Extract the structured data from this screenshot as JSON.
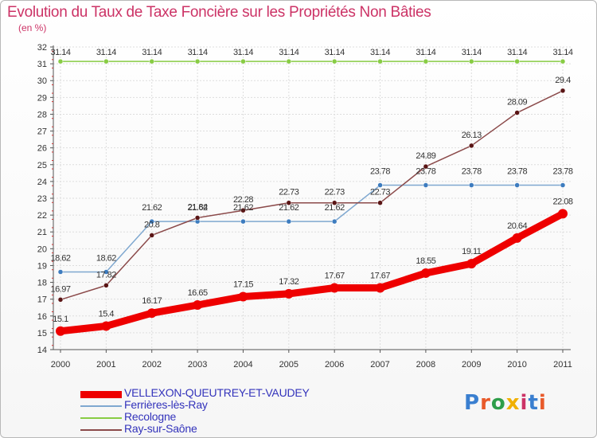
{
  "title": "Evolution du Taux de Taxe Foncière sur les Propriétés Non Bâties",
  "unit_label": "(en %)",
  "logo_text": "Proxiti",
  "chart_data": {
    "type": "line",
    "title": "Evolution du Taux de Taxe Foncière sur les Propriétés Non Bâties",
    "ylabel": "(en %)",
    "xlabel": "",
    "x": [
      "2000",
      "2001",
      "2002",
      "2003",
      "2004",
      "2005",
      "2006",
      "2007",
      "2008",
      "2009",
      "2010",
      "2011"
    ],
    "ylim": [
      14,
      32
    ],
    "yticks": [
      "14",
      "15",
      "16",
      "17",
      "18",
      "19",
      "20",
      "21",
      "22",
      "23",
      "24",
      "25",
      "26",
      "27",
      "28",
      "29",
      "30",
      "31",
      "32"
    ],
    "legend_position": "bottom",
    "series": [
      {
        "name": "Recologne",
        "color": "#88cc44",
        "marker": "#88cc44",
        "values": [
          31.14,
          31.14,
          31.14,
          31.14,
          31.14,
          31.14,
          31.14,
          31.14,
          31.14,
          31.14,
          31.14,
          31.14
        ],
        "labels": [
          "31.14",
          "31.14",
          "31.14",
          "31.14",
          "31.14",
          "31.14",
          "31.14",
          "31.14",
          "31.14",
          "31.14",
          "31.14",
          "31.14"
        ]
      },
      {
        "name": "Ferrières-lès-Ray",
        "color": "#7fa8d0",
        "marker": "#3d7cbf",
        "values": [
          18.62,
          18.62,
          21.62,
          21.62,
          21.62,
          21.62,
          21.62,
          23.78,
          23.78,
          23.78,
          23.78,
          23.78
        ],
        "labels": [
          "18.62",
          "18.62",
          "21.62",
          "21.62",
          "21.62",
          "21.62",
          "21.62",
          "23.78",
          "23.78",
          "23.78",
          "23.78",
          "23.78"
        ]
      },
      {
        "name": "Ray-sur-Saône",
        "color": "#8b4a4a",
        "marker": "#5a1515",
        "values": [
          16.97,
          17.82,
          20.8,
          21.84,
          22.28,
          22.73,
          22.73,
          22.73,
          24.89,
          26.13,
          28.09,
          29.4
        ],
        "labels": [
          "16.97",
          "17.82",
          "20.8",
          "21.84",
          "22.28",
          "22.73",
          "22.73",
          "22.73",
          "24.89",
          "26.13",
          "28.09",
          "29.4"
        ]
      },
      {
        "name": "VELLEXON-QUEUTREY-ET-VAUDEY",
        "color": "#ee0000",
        "marker": "#ee0000",
        "values": [
          15.1,
          15.4,
          16.17,
          16.65,
          17.15,
          17.32,
          17.67,
          17.67,
          18.55,
          19.11,
          20.64,
          22.08
        ],
        "labels": [
          "15.1",
          "15.4",
          "16.17",
          "16.65",
          "17.15",
          "17.32",
          "17.67",
          "17.67",
          "18.55",
          "19.11",
          "20.64",
          "22.08"
        ]
      }
    ],
    "legend": [
      "VELLEXON-QUEUTREY-ET-VAUDEY",
      "Ferrières-lès-Ray",
      "Recologne",
      "Ray-sur-Saône"
    ]
  }
}
